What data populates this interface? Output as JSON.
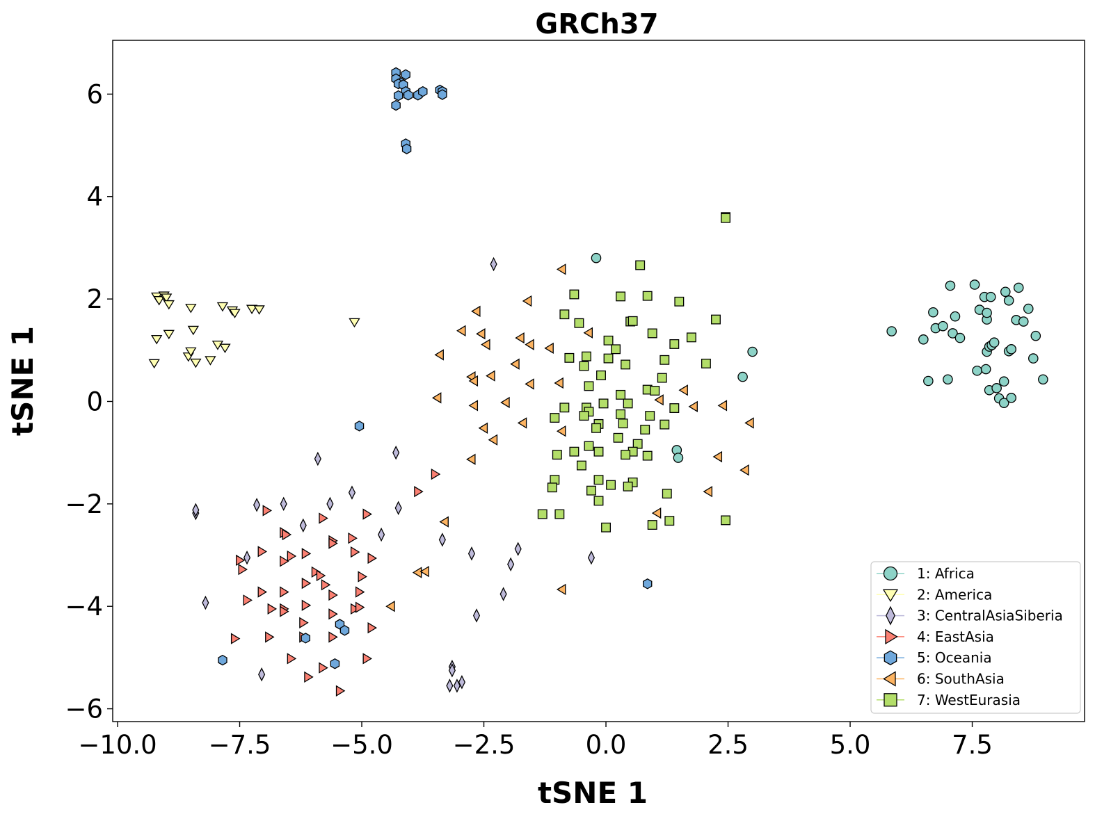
{
  "chart_data": {
    "type": "scatter",
    "title": "GRCh37",
    "xlabel": "tSNE 1",
    "ylabel": "tSNE 1",
    "xlim": [
      -10.1,
      9.8
    ],
    "ylim": [
      -6.25,
      7.05
    ],
    "xticks": [
      -10.0,
      -7.5,
      -5.0,
      -2.5,
      0.0,
      2.5,
      5.0,
      7.5
    ],
    "xtick_labels": [
      "−10.0",
      "−7.5",
      "−5.0",
      "−2.5",
      "0.0",
      "2.5",
      "5.0",
      "7.5"
    ],
    "yticks": [
      -6,
      -4,
      -2,
      0,
      2,
      4,
      6
    ],
    "ytick_labels": [
      "−6",
      "−4",
      "−2",
      "0",
      "2",
      "4",
      "6"
    ],
    "grid": false,
    "legend_position": "bottom-right",
    "series": [
      {
        "name": "1: Africa",
        "marker": "circle",
        "color": "#8dd3c7",
        "points": [
          [
            -0.2,
            2.8
          ],
          [
            3.0,
            0.97
          ],
          [
            2.8,
            0.48
          ],
          [
            1.45,
            -0.95
          ],
          [
            1.48,
            -1.1
          ],
          [
            5.85,
            1.37
          ],
          [
            6.5,
            1.21
          ],
          [
            6.6,
            0.4
          ],
          [
            6.7,
            1.74
          ],
          [
            6.75,
            1.43
          ],
          [
            6.9,
            1.47
          ],
          [
            7.0,
            0.43
          ],
          [
            7.05,
            2.26
          ],
          [
            7.1,
            1.33
          ],
          [
            7.15,
            1.66
          ],
          [
            7.25,
            1.24
          ],
          [
            7.55,
            2.28
          ],
          [
            7.6,
            0.6
          ],
          [
            7.65,
            1.79
          ],
          [
            7.75,
            2.04
          ],
          [
            7.78,
            0.63
          ],
          [
            7.8,
            1.6
          ],
          [
            7.8,
            1.73
          ],
          [
            7.8,
            0.97
          ],
          [
            7.85,
            1.07
          ],
          [
            7.85,
            0.22
          ],
          [
            7.88,
            2.04
          ],
          [
            7.9,
            1.1
          ],
          [
            7.95,
            1.15
          ],
          [
            8.0,
            0.26
          ],
          [
            8.05,
            0.06
          ],
          [
            8.15,
            0.39
          ],
          [
            8.15,
            -0.03
          ],
          [
            8.18,
            2.14
          ],
          [
            8.25,
            0.98
          ],
          [
            8.25,
            1.97
          ],
          [
            8.3,
            0.07
          ],
          [
            8.3,
            1.02
          ],
          [
            8.4,
            1.59
          ],
          [
            8.45,
            2.22
          ],
          [
            8.55,
            1.56
          ],
          [
            8.65,
            1.81
          ],
          [
            8.75,
            0.84
          ],
          [
            8.8,
            1.28
          ],
          [
            8.95,
            0.43
          ]
        ]
      },
      {
        "name": "2: America",
        "marker": "triangle-down",
        "color": "#ffffb3",
        "points": [
          [
            -9.2,
            2.05
          ],
          [
            -9.15,
            1.98
          ],
          [
            -9.05,
            2.07
          ],
          [
            -9.0,
            2.03
          ],
          [
            -8.95,
            1.9
          ],
          [
            -8.5,
            1.83
          ],
          [
            -7.85,
            1.86
          ],
          [
            -7.65,
            1.78
          ],
          [
            -7.6,
            1.73
          ],
          [
            -7.25,
            1.81
          ],
          [
            -7.1,
            1.8
          ],
          [
            -9.25,
            0.75
          ],
          [
            -9.2,
            1.22
          ],
          [
            -8.95,
            1.32
          ],
          [
            -8.55,
            0.88
          ],
          [
            -8.5,
            0.98
          ],
          [
            -8.45,
            1.4
          ],
          [
            -8.4,
            0.76
          ],
          [
            -8.1,
            0.81
          ],
          [
            -7.95,
            1.11
          ],
          [
            -7.8,
            1.05
          ],
          [
            -5.15,
            1.55
          ]
        ]
      },
      {
        "name": "3: CentralAsiaSiberia",
        "marker": "diamond",
        "color": "#bebada",
        "points": [
          [
            -2.3,
            2.68
          ],
          [
            -5.9,
            -1.12
          ],
          [
            -4.3,
            -1.0
          ],
          [
            -8.4,
            -2.18
          ],
          [
            -8.4,
            -2.12
          ],
          [
            -7.15,
            -2.02
          ],
          [
            -6.6,
            -2.0
          ],
          [
            -5.65,
            -2.0
          ],
          [
            -5.2,
            -1.78
          ],
          [
            -4.25,
            -2.08
          ],
          [
            -6.2,
            -2.42
          ],
          [
            -4.6,
            -2.6
          ],
          [
            -7.35,
            -3.05
          ],
          [
            -3.35,
            -2.7
          ],
          [
            -1.8,
            -2.88
          ],
          [
            -2.75,
            -2.97
          ],
          [
            -1.95,
            -3.18
          ],
          [
            -0.3,
            -3.05
          ],
          [
            -2.1,
            -3.76
          ],
          [
            -8.2,
            -3.93
          ],
          [
            -2.65,
            -4.18
          ],
          [
            -7.05,
            -5.33
          ],
          [
            -3.15,
            -5.18
          ],
          [
            -3.15,
            -5.25
          ],
          [
            -3.2,
            -5.55
          ],
          [
            -3.05,
            -5.55
          ],
          [
            -2.95,
            -5.48
          ]
        ]
      },
      {
        "name": "4: EastAsia",
        "marker": "triangle-right",
        "color": "#fb8072",
        "points": [
          [
            -3.5,
            -1.42
          ],
          [
            -3.85,
            -1.76
          ],
          [
            -6.95,
            -2.13
          ],
          [
            -4.9,
            -2.2
          ],
          [
            -5.8,
            -2.28
          ],
          [
            -6.6,
            -2.56
          ],
          [
            -6.55,
            -2.6
          ],
          [
            -5.6,
            -2.72
          ],
          [
            -5.6,
            -2.77
          ],
          [
            -5.2,
            -2.67
          ],
          [
            -7.05,
            -2.93
          ],
          [
            -6.45,
            -3.02
          ],
          [
            -6.15,
            -2.97
          ],
          [
            -5.15,
            -2.94
          ],
          [
            -4.8,
            -3.06
          ],
          [
            -7.5,
            -3.1
          ],
          [
            -6.6,
            -3.12
          ],
          [
            -5.95,
            -3.33
          ],
          [
            -7.45,
            -3.28
          ],
          [
            -5.85,
            -3.4
          ],
          [
            -5.0,
            -3.42
          ],
          [
            -6.15,
            -3.55
          ],
          [
            -5.75,
            -3.58
          ],
          [
            -7.05,
            -3.72
          ],
          [
            -6.6,
            -3.72
          ],
          [
            -5.05,
            -3.72
          ],
          [
            -5.6,
            -3.78
          ],
          [
            -7.35,
            -3.88
          ],
          [
            -6.85,
            -4.05
          ],
          [
            -6.6,
            -4.05
          ],
          [
            -6.6,
            -4.1
          ],
          [
            -6.15,
            -3.98
          ],
          [
            -5.6,
            -4.15
          ],
          [
            -5.15,
            -4.05
          ],
          [
            -5.05,
            -4.02
          ],
          [
            -4.8,
            -4.42
          ],
          [
            -6.2,
            -4.32
          ],
          [
            -7.6,
            -4.63
          ],
          [
            -6.9,
            -4.6
          ],
          [
            -6.2,
            -4.6
          ],
          [
            -5.6,
            -4.6
          ],
          [
            -6.45,
            -5.02
          ],
          [
            -4.9,
            -5.02
          ],
          [
            -5.8,
            -5.2
          ],
          [
            -6.1,
            -5.38
          ],
          [
            -5.45,
            -5.65
          ]
        ]
      },
      {
        "name": "5: Oceania",
        "marker": "hexagon",
        "color": "#6fa8dc",
        "points": [
          [
            -4.3,
            6.42
          ],
          [
            -4.3,
            6.3
          ],
          [
            -4.1,
            6.38
          ],
          [
            -4.2,
            6.22
          ],
          [
            -4.25,
            6.2
          ],
          [
            -4.15,
            6.18
          ],
          [
            -4.1,
            6.05
          ],
          [
            -4.25,
            5.97
          ],
          [
            -4.05,
            5.98
          ],
          [
            -3.85,
            5.98
          ],
          [
            -3.75,
            6.05
          ],
          [
            -3.4,
            6.08
          ],
          [
            -3.35,
            6.05
          ],
          [
            -3.35,
            5.99
          ],
          [
            -4.3,
            5.78
          ],
          [
            -4.1,
            5.03
          ],
          [
            -4.08,
            4.93
          ],
          [
            -5.05,
            -0.48
          ],
          [
            0.85,
            -3.56
          ],
          [
            -6.15,
            -4.62
          ],
          [
            -5.45,
            -4.35
          ],
          [
            -5.35,
            -4.47
          ],
          [
            -7.85,
            -5.05
          ],
          [
            -5.55,
            -5.12
          ]
        ]
      },
      {
        "name": "6: SouthAsia",
        "marker": "triangle-left",
        "color": "#fdb462",
        "points": [
          [
            -0.9,
            2.58
          ],
          [
            -1.6,
            1.96
          ],
          [
            -2.65,
            1.76
          ],
          [
            -2.95,
            1.38
          ],
          [
            -2.55,
            1.32
          ],
          [
            -1.75,
            1.24
          ],
          [
            -2.45,
            1.11
          ],
          [
            -1.55,
            1.11
          ],
          [
            -1.15,
            1.04
          ],
          [
            -0.35,
            1.34
          ],
          [
            -3.4,
            0.91
          ],
          [
            -1.85,
            0.73
          ],
          [
            -2.75,
            0.48
          ],
          [
            -2.7,
            0.4
          ],
          [
            -2.35,
            0.5
          ],
          [
            -1.55,
            0.34
          ],
          [
            -0.95,
            0.36
          ],
          [
            -3.45,
            0.07
          ],
          [
            -2.7,
            -0.08
          ],
          [
            -2.05,
            -0.02
          ],
          [
            1.1,
            0.03
          ],
          [
            1.6,
            0.22
          ],
          [
            1.8,
            -0.1
          ],
          [
            2.4,
            -0.08
          ],
          [
            -1.7,
            -0.42
          ],
          [
            -2.5,
            -0.52
          ],
          [
            -0.9,
            -0.58
          ],
          [
            2.95,
            -0.42
          ],
          [
            -2.3,
            -0.75
          ],
          [
            -2.75,
            -1.13
          ],
          [
            2.3,
            -1.08
          ],
          [
            2.85,
            -1.34
          ],
          [
            -3.3,
            -2.35
          ],
          [
            2.1,
            -1.76
          ],
          [
            1.05,
            -2.18
          ],
          [
            -3.85,
            -3.34
          ],
          [
            -3.7,
            -3.32
          ],
          [
            -4.4,
            -4.0
          ],
          [
            -0.9,
            -3.67
          ]
        ]
      },
      {
        "name": "7: WestEurasia",
        "marker": "square",
        "color": "#b3de69",
        "points": [
          [
            2.45,
            3.6
          ],
          [
            2.45,
            3.58
          ],
          [
            0.7,
            2.66
          ],
          [
            -0.65,
            2.09
          ],
          [
            0.3,
            2.05
          ],
          [
            0.85,
            2.06
          ],
          [
            1.5,
            1.95
          ],
          [
            -0.85,
            1.7
          ],
          [
            -0.55,
            1.53
          ],
          [
            0.5,
            1.56
          ],
          [
            0.55,
            1.57
          ],
          [
            2.25,
            1.6
          ],
          [
            0.95,
            1.33
          ],
          [
            1.75,
            1.25
          ],
          [
            0.05,
            1.19
          ],
          [
            1.4,
            1.12
          ],
          [
            0.2,
            1.02
          ],
          [
            -0.75,
            0.85
          ],
          [
            -0.4,
            0.88
          ],
          [
            0.05,
            0.84
          ],
          [
            0.4,
            0.72
          ],
          [
            1.2,
            0.81
          ],
          [
            2.05,
            0.74
          ],
          [
            -0.45,
            0.69
          ],
          [
            -0.1,
            0.51
          ],
          [
            1.15,
            0.46
          ],
          [
            -0.35,
            0.3
          ],
          [
            0.85,
            0.23
          ],
          [
            1.0,
            0.21
          ],
          [
            0.3,
            0.13
          ],
          [
            -0.05,
            -0.04
          ],
          [
            0.45,
            -0.04
          ],
          [
            -0.85,
            -0.12
          ],
          [
            -0.4,
            -0.12
          ],
          [
            1.4,
            -0.13
          ],
          [
            -0.35,
            -0.2
          ],
          [
            -0.45,
            -0.28
          ],
          [
            0.3,
            -0.25
          ],
          [
            -1.05,
            -0.32
          ],
          [
            0.9,
            -0.28
          ],
          [
            -0.15,
            -0.44
          ],
          [
            0.35,
            -0.43
          ],
          [
            1.2,
            -0.45
          ],
          [
            -0.2,
            -0.52
          ],
          [
            0.8,
            -0.55
          ],
          [
            0.25,
            -0.71
          ],
          [
            0.65,
            -0.83
          ],
          [
            -0.35,
            -0.87
          ],
          [
            -0.65,
            -0.98
          ],
          [
            -0.15,
            -0.98
          ],
          [
            0.55,
            -0.98
          ],
          [
            -1.0,
            -1.04
          ],
          [
            0.4,
            -1.04
          ],
          [
            0.85,
            -1.06
          ],
          [
            -0.5,
            -1.25
          ],
          [
            -1.05,
            -1.53
          ],
          [
            -0.15,
            -1.53
          ],
          [
            0.1,
            -1.63
          ],
          [
            0.55,
            -1.58
          ],
          [
            -1.1,
            -1.68
          ],
          [
            -0.3,
            -1.74
          ],
          [
            0.45,
            -1.66
          ],
          [
            1.25,
            -1.8
          ],
          [
            -0.15,
            -1.94
          ],
          [
            -1.3,
            -2.2
          ],
          [
            -0.95,
            -2.2
          ],
          [
            1.3,
            -2.33
          ],
          [
            2.45,
            -2.32
          ],
          [
            0.95,
            -2.41
          ],
          [
            0.0,
            -2.46
          ]
        ]
      }
    ]
  }
}
